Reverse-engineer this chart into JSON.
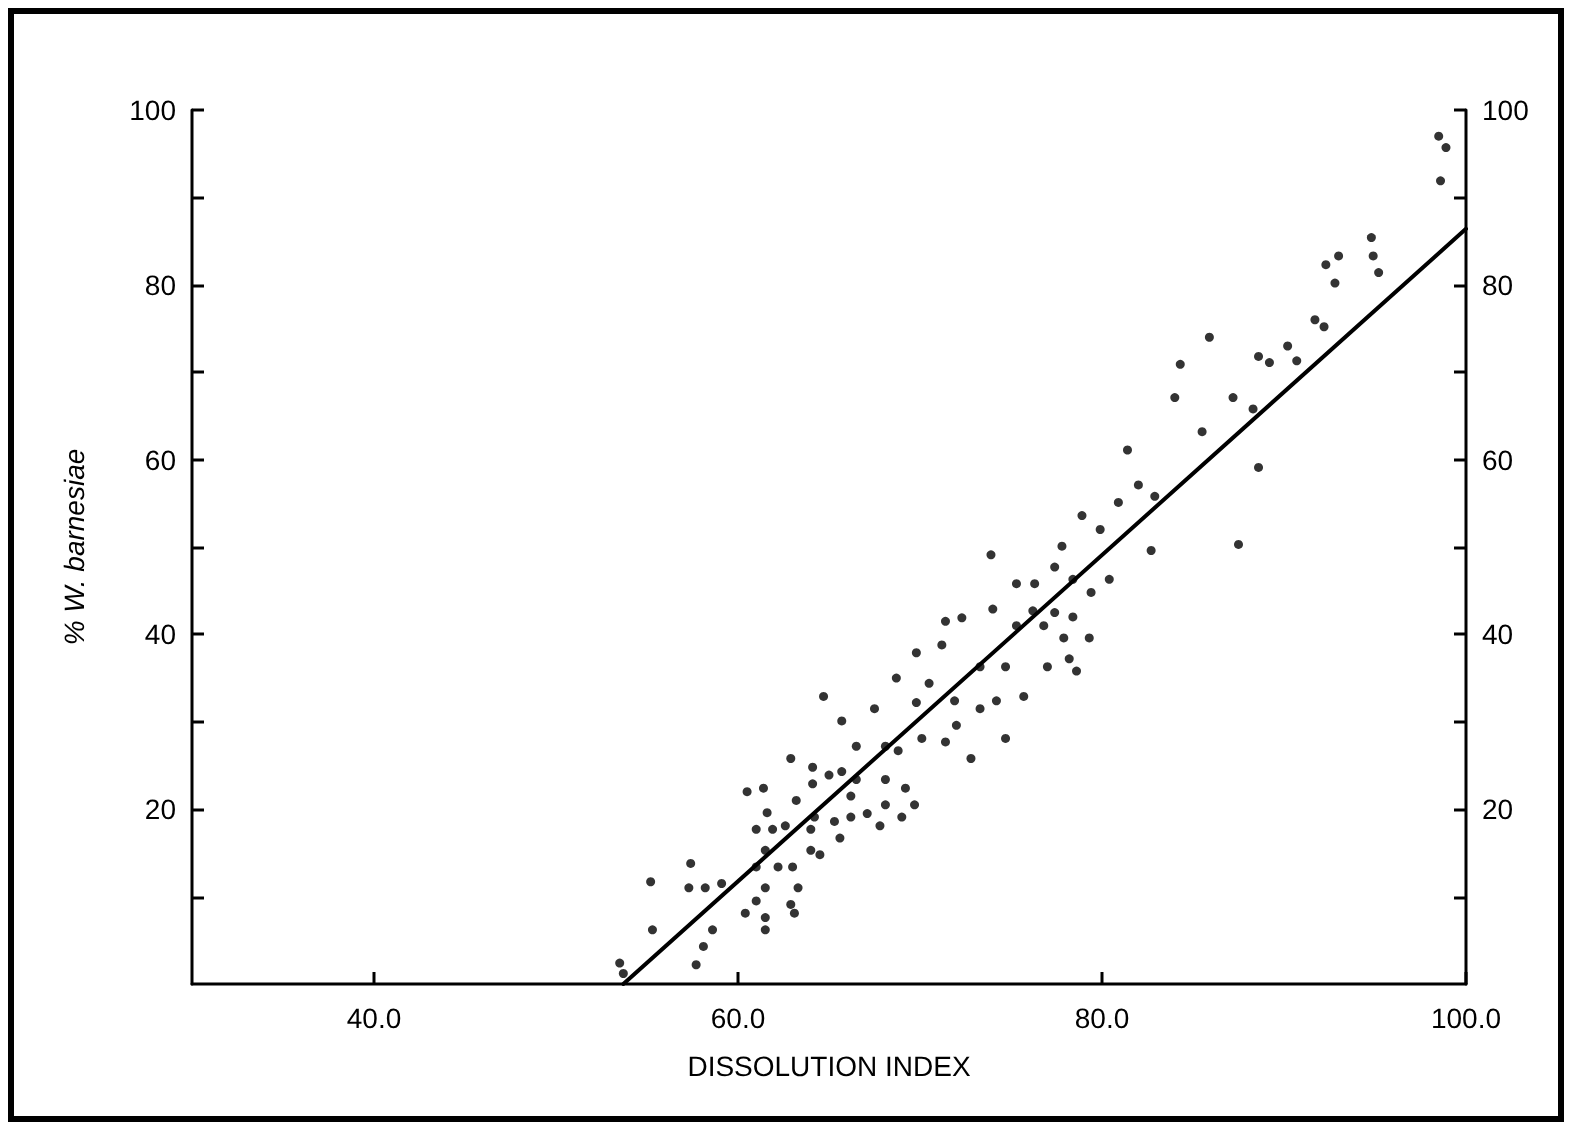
{
  "chart_data": {
    "type": "scatter",
    "xlabel": "DISSOLUTION INDEX",
    "ylabel": "% W. barnesiae",
    "xlim": [
      30,
      100
    ],
    "xticks": [
      {
        "value": 40,
        "label": "40.0"
      },
      {
        "value": 60,
        "label": "60.0"
      },
      {
        "value": 80,
        "label": "80.0"
      },
      {
        "value": 100,
        "label": "100.0"
      }
    ],
    "ylim": [
      0,
      100
    ],
    "yticks": [
      {
        "value": 10,
        "label": null
      },
      20,
      {
        "value": 30,
        "label": null
      },
      40,
      {
        "value": 50,
        "label": null
      },
      60,
      {
        "value": 70,
        "label": null
      },
      80,
      {
        "value": 90,
        "label": null
      },
      100
    ],
    "y2lim": [
      0,
      100
    ],
    "y2ticks": [
      {
        "value": 10,
        "label": null
      },
      20,
      {
        "value": 30,
        "label": null
      },
      40,
      {
        "value": 50,
        "label": null
      },
      60,
      {
        "value": 70,
        "label": null
      },
      80,
      {
        "value": 90,
        "label": null
      },
      100
    ],
    "grid": false,
    "marker": "circle",
    "series": [
      {
        "color": "#000000",
        "x": [
          98.5,
          98.9,
          98.6,
          94.8,
          94.9,
          95.2,
          92.3,
          93,
          92.8,
          91.7,
          92.2,
          90.2,
          90.7,
          88.6,
          89.2,
          85.9,
          84.3,
          84,
          87.2,
          88.3,
          85.5,
          88.6,
          87.5,
          81.4,
          82,
          80.9,
          82.9,
          82.7,
          78.9,
          79.9,
          77.8,
          80.4,
          79.4,
          78.4,
          77.4,
          76.3,
          75.3,
          73.9,
          76.2,
          77.4,
          78.4,
          76.8,
          77.9,
          79.3,
          77,
          78.2,
          78.6,
          74,
          75.3,
          72.3,
          71.4,
          71.2,
          69.8,
          73.3,
          74.7,
          75.7,
          74.2,
          73.3,
          71.9,
          70.5,
          69.8,
          68.7,
          67.5,
          70.1,
          71.4,
          72.8,
          74.7,
          72,
          68.8,
          68.1,
          66.5,
          64.7,
          65.7,
          68.1,
          69.2,
          69.7,
          69,
          68.1,
          67.1,
          67.8,
          66.2,
          66.2,
          65.3,
          65.6,
          64.2,
          64,
          64,
          64.5,
          62.6,
          61.9,
          61.5,
          61,
          62.2,
          63,
          63.3,
          62.9,
          61.5,
          61,
          61.5,
          61.5,
          60.4,
          63.1,
          60.5,
          61.4,
          61.6,
          61,
          62.9,
          64.1,
          65,
          64.1,
          63.2,
          59.1,
          58.2,
          57.4,
          57.3,
          55.2,
          55.3,
          58.6,
          58.1,
          57.7,
          53.5,
          53.7,
          65.7,
          66.5
        ],
        "values": [
          97,
          95.7,
          91.9,
          85.4,
          83.3,
          81.4,
          82.3,
          83.3,
          80.2,
          76,
          75.2,
          73,
          71.3,
          71.8,
          71.1,
          74,
          70.9,
          67.1,
          67.1,
          65.8,
          63.2,
          59.1,
          50.3,
          61.1,
          57.1,
          55.1,
          55.8,
          49.6,
          53.6,
          52,
          50.1,
          46.3,
          44.8,
          46.3,
          47.7,
          45.8,
          45.8,
          49.1,
          42.7,
          42.5,
          42,
          41,
          39.6,
          39.6,
          36.3,
          37.2,
          35.8,
          42.9,
          41,
          41.9,
          41.5,
          38.8,
          37.9,
          36.3,
          36.3,
          32.9,
          32.4,
          31.5,
          32.4,
          34.4,
          32.2,
          35,
          31.5,
          28.1,
          27.7,
          25.8,
          28.1,
          29.6,
          26.7,
          27.2,
          27.2,
          32.9,
          30.1,
          23.4,
          22.4,
          20.5,
          19.1,
          20.5,
          19.5,
          18.1,
          21.5,
          19.1,
          18.6,
          16.7,
          19.1,
          17.7,
          15.3,
          14.8,
          18.1,
          17.7,
          15.3,
          13.4,
          13.4,
          13.4,
          11,
          9.1,
          11,
          9.5,
          7.6,
          6.2,
          8.1,
          8.1,
          22,
          22.4,
          19.6,
          17.7,
          25.8,
          24.8,
          23.9,
          22.9,
          21,
          11.5,
          11,
          13.8,
          11,
          11.7,
          6.2,
          6.2,
          4.3,
          2.2,
          2.4,
          1.2,
          24.3,
          23.4
        ]
      },
      {
        "type": "line",
        "color": "#000000",
        "marker": "none",
        "line_style": "solid",
        "x": [
          53.7,
          100
        ],
        "values": [
          0,
          86.4
        ]
      }
    ]
  }
}
